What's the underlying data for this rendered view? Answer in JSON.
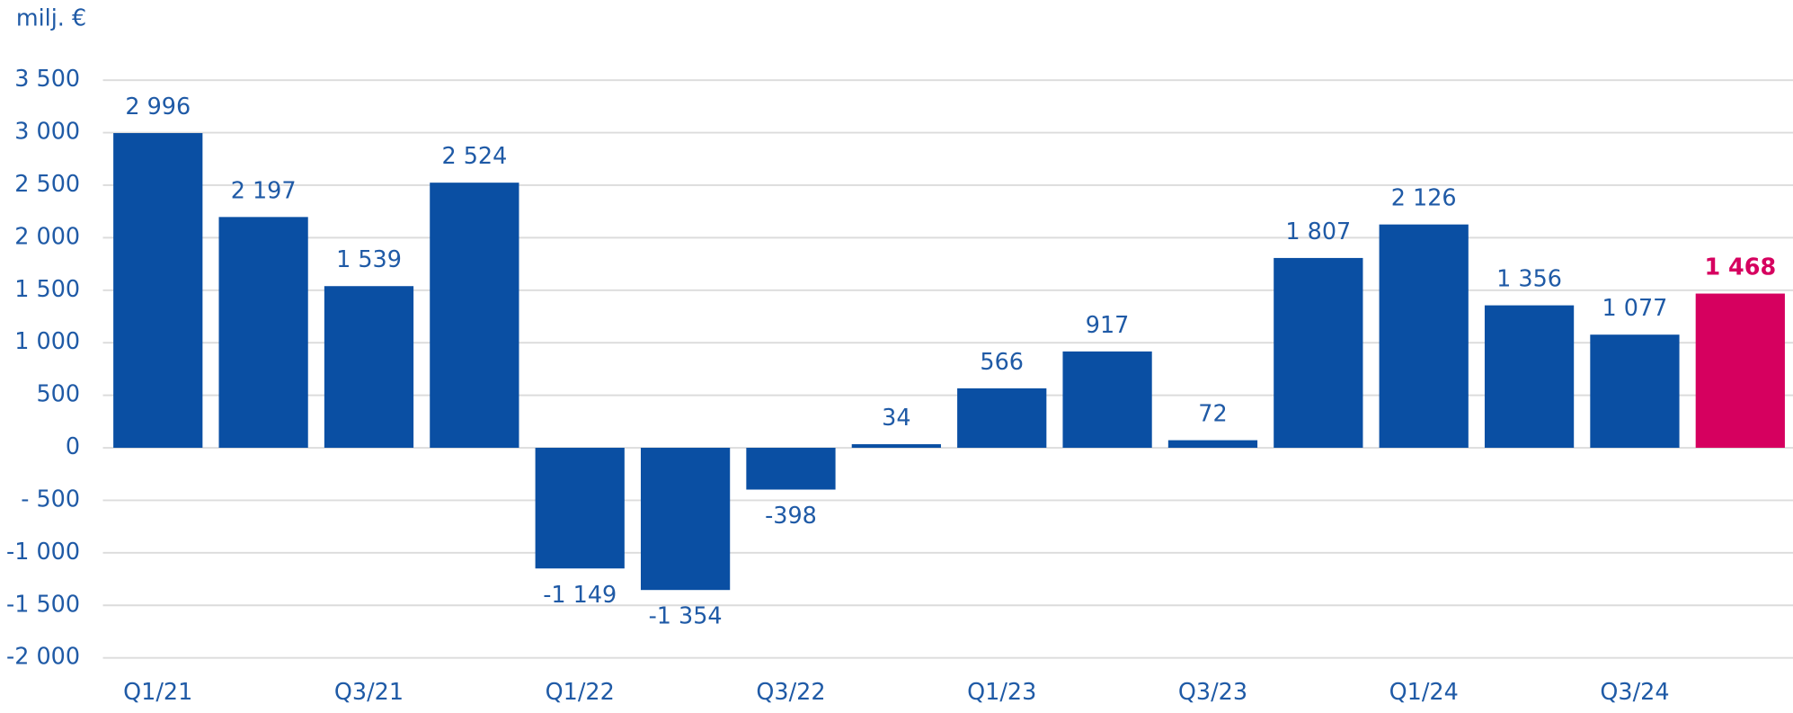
{
  "chart_data": {
    "type": "bar",
    "y_axis_label": "milj. €",
    "categories": [
      "Q1/21",
      null,
      "Q3/21",
      null,
      "Q1/22",
      null,
      "Q3/22",
      null,
      "Q1/23",
      null,
      "Q3/23",
      null,
      "Q1/24",
      null,
      "Q3/24",
      null
    ],
    "values": [
      2996,
      2197,
      1539,
      2524,
      -1149,
      -1354,
      -398,
      34,
      566,
      917,
      72,
      1807,
      2126,
      1356,
      1077,
      1468
    ],
    "value_labels": [
      "2 996",
      "2 197",
      "1 539",
      "2 524",
      "-1 149",
      "-1 354",
      "-398",
      "34",
      "566",
      "917",
      "72",
      "1 807",
      "2 126",
      "1 356",
      "1 077",
      "1 468"
    ],
    "colors": [
      "#0a4fa3",
      "#0a4fa3",
      "#0a4fa3",
      "#0a4fa3",
      "#0a4fa3",
      "#0a4fa3",
      "#0a4fa3",
      "#0a4fa3",
      "#0a4fa3",
      "#0a4fa3",
      "#0a4fa3",
      "#0a4fa3",
      "#0a4fa3",
      "#0a4fa3",
      "#0a4fa3",
      "#d6005f"
    ],
    "ylim": [
      -2000,
      3500
    ],
    "yticks": [
      {
        "value": -2000,
        "label": "-2 000"
      },
      {
        "value": -1500,
        "label": "-1 500"
      },
      {
        "value": -1000,
        "label": "-1 000"
      },
      {
        "value": -500,
        "label": "- 500"
      },
      0,
      500,
      {
        "value": 1000,
        "label": "1 000"
      },
      {
        "value": 1500,
        "label": "1 500"
      },
      {
        "value": 2000,
        "label": "2 000"
      },
      {
        "value": 2500,
        "label": "2 500"
      },
      {
        "value": 3000,
        "label": "3 000"
      },
      {
        "value": 3500,
        "label": "3 500"
      }
    ],
    "grid": true
  }
}
